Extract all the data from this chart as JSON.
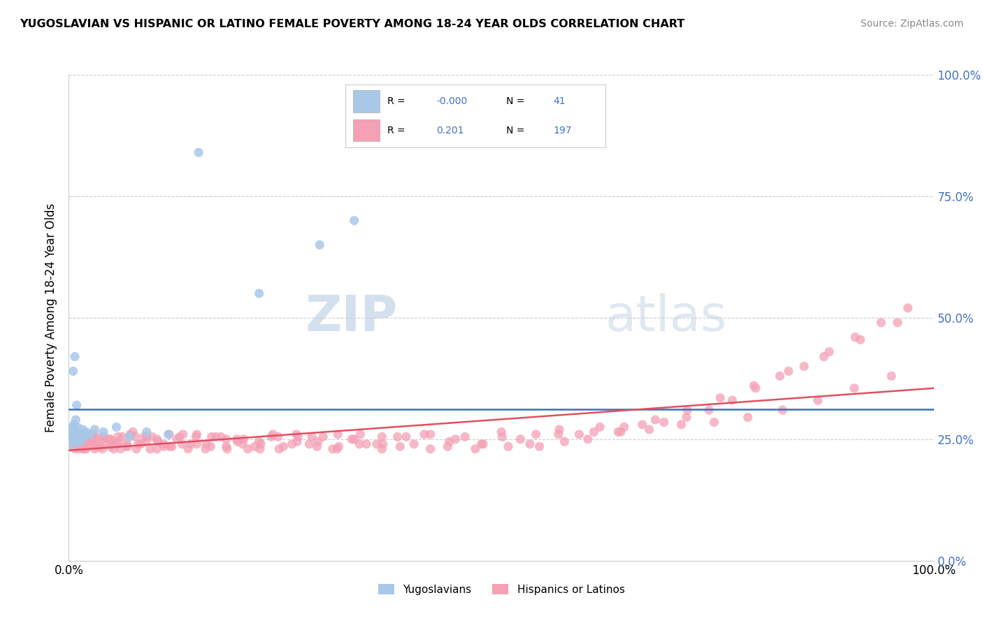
{
  "title": "YUGOSLAVIAN VS HISPANIC OR LATINO FEMALE POVERTY AMONG 18-24 YEAR OLDS CORRELATION CHART",
  "source": "Source: ZipAtlas.com",
  "ylabel": "Female Poverty Among 18-24 Year Olds",
  "color_blue": "#a8c8e8",
  "color_pink": "#f4a0b5",
  "color_blue_line": "#3a6fbc",
  "color_pink_line": "#e05060",
  "watermark_zip": "ZIP",
  "watermark_atlas": "atlas",
  "legend_label1": "Yugoslavians",
  "legend_label2": "Hispanics or Latinos",
  "blue_x": [
    0.002,
    0.003,
    0.003,
    0.004,
    0.004,
    0.005,
    0.005,
    0.005,
    0.006,
    0.006,
    0.006,
    0.007,
    0.007,
    0.008,
    0.008,
    0.009,
    0.009,
    0.01,
    0.01,
    0.011,
    0.011,
    0.012,
    0.013,
    0.014,
    0.015,
    0.016,
    0.018,
    0.02,
    0.025,
    0.03,
    0.04,
    0.055,
    0.07,
    0.09,
    0.115,
    0.15,
    0.22,
    0.29,
    0.33,
    0.005,
    0.007
  ],
  "blue_y": [
    0.255,
    0.26,
    0.27,
    0.265,
    0.275,
    0.24,
    0.25,
    0.26,
    0.255,
    0.265,
    0.28,
    0.25,
    0.27,
    0.255,
    0.29,
    0.26,
    0.32,
    0.245,
    0.275,
    0.25,
    0.265,
    0.255,
    0.245,
    0.26,
    0.25,
    0.27,
    0.255,
    0.265,
    0.26,
    0.27,
    0.265,
    0.275,
    0.255,
    0.265,
    0.26,
    0.84,
    0.55,
    0.65,
    0.7,
    0.39,
    0.42
  ],
  "pink_x": [
    0.003,
    0.004,
    0.005,
    0.005,
    0.006,
    0.006,
    0.007,
    0.007,
    0.008,
    0.008,
    0.009,
    0.01,
    0.01,
    0.011,
    0.012,
    0.013,
    0.014,
    0.015,
    0.016,
    0.017,
    0.018,
    0.019,
    0.02,
    0.022,
    0.024,
    0.026,
    0.028,
    0.03,
    0.033,
    0.036,
    0.04,
    0.044,
    0.048,
    0.052,
    0.057,
    0.062,
    0.068,
    0.074,
    0.08,
    0.087,
    0.094,
    0.102,
    0.11,
    0.119,
    0.128,
    0.138,
    0.148,
    0.159,
    0.17,
    0.182,
    0.194,
    0.207,
    0.22,
    0.234,
    0.248,
    0.263,
    0.278,
    0.294,
    0.31,
    0.327,
    0.344,
    0.362,
    0.38,
    0.399,
    0.418,
    0.438,
    0.458,
    0.479,
    0.5,
    0.522,
    0.544,
    0.567,
    0.59,
    0.614,
    0.638,
    0.663,
    0.688,
    0.714,
    0.74,
    0.767,
    0.794,
    0.822,
    0.85,
    0.879,
    0.909,
    0.939,
    0.97,
    0.005,
    0.008,
    0.012,
    0.016,
    0.021,
    0.027,
    0.034,
    0.041,
    0.05,
    0.06,
    0.071,
    0.083,
    0.096,
    0.11,
    0.125,
    0.141,
    0.158,
    0.176,
    0.195,
    0.215,
    0.236,
    0.258,
    0.281,
    0.305,
    0.33,
    0.356,
    0.383,
    0.411,
    0.44,
    0.47,
    0.501,
    0.533,
    0.566,
    0.6,
    0.635,
    0.671,
    0.708,
    0.746,
    0.785,
    0.825,
    0.866,
    0.908,
    0.951,
    0.004,
    0.007,
    0.011,
    0.015,
    0.02,
    0.026,
    0.033,
    0.04,
    0.048,
    0.057,
    0.067,
    0.078,
    0.09,
    0.103,
    0.117,
    0.132,
    0.148,
    0.165,
    0.183,
    0.202,
    0.222,
    0.243,
    0.265,
    0.288,
    0.312,
    0.337,
    0.363,
    0.39,
    0.418,
    0.447,
    0.477,
    0.508,
    0.54,
    0.573,
    0.607,
    0.642,
    0.678,
    0.715,
    0.753,
    0.792,
    0.832,
    0.873,
    0.915,
    0.958,
    0.006,
    0.01,
    0.014,
    0.019,
    0.025,
    0.032,
    0.039,
    0.047,
    0.056,
    0.066,
    0.077,
    0.089,
    0.102,
    0.116,
    0.131,
    0.147,
    0.164,
    0.182,
    0.201,
    0.221,
    0.242,
    0.264,
    0.287,
    0.311,
    0.336,
    0.362
  ],
  "pink_y": [
    0.25,
    0.245,
    0.26,
    0.235,
    0.255,
    0.24,
    0.265,
    0.23,
    0.25,
    0.235,
    0.26,
    0.24,
    0.255,
    0.23,
    0.245,
    0.255,
    0.235,
    0.26,
    0.24,
    0.25,
    0.23,
    0.255,
    0.245,
    0.235,
    0.255,
    0.24,
    0.26,
    0.23,
    0.25,
    0.235,
    0.255,
    0.24,
    0.25,
    0.23,
    0.245,
    0.255,
    0.235,
    0.265,
    0.24,
    0.255,
    0.23,
    0.25,
    0.24,
    0.235,
    0.255,
    0.23,
    0.26,
    0.24,
    0.255,
    0.235,
    0.25,
    0.23,
    0.245,
    0.255,
    0.235,
    0.26,
    0.24,
    0.255,
    0.23,
    0.25,
    0.24,
    0.23,
    0.255,
    0.24,
    0.26,
    0.235,
    0.255,
    0.24,
    0.265,
    0.25,
    0.235,
    0.27,
    0.26,
    0.275,
    0.265,
    0.28,
    0.285,
    0.295,
    0.31,
    0.33,
    0.355,
    0.38,
    0.4,
    0.43,
    0.46,
    0.49,
    0.52,
    0.245,
    0.235,
    0.255,
    0.23,
    0.25,
    0.24,
    0.235,
    0.255,
    0.245,
    0.23,
    0.26,
    0.24,
    0.255,
    0.235,
    0.25,
    0.24,
    0.23,
    0.255,
    0.245,
    0.235,
    0.26,
    0.24,
    0.255,
    0.23,
    0.25,
    0.24,
    0.235,
    0.26,
    0.245,
    0.23,
    0.255,
    0.24,
    0.26,
    0.25,
    0.265,
    0.27,
    0.28,
    0.285,
    0.295,
    0.31,
    0.33,
    0.355,
    0.38,
    0.24,
    0.25,
    0.235,
    0.255,
    0.23,
    0.26,
    0.24,
    0.25,
    0.235,
    0.255,
    0.24,
    0.23,
    0.255,
    0.245,
    0.235,
    0.26,
    0.24,
    0.255,
    0.23,
    0.25,
    0.24,
    0.23,
    0.255,
    0.245,
    0.235,
    0.26,
    0.24,
    0.255,
    0.23,
    0.25,
    0.24,
    0.235,
    0.26,
    0.245,
    0.265,
    0.275,
    0.29,
    0.31,
    0.335,
    0.36,
    0.39,
    0.42,
    0.455,
    0.49,
    0.245,
    0.255,
    0.235,
    0.26,
    0.24,
    0.255,
    0.23,
    0.25,
    0.24,
    0.235,
    0.255,
    0.245,
    0.23,
    0.26,
    0.24,
    0.255,
    0.235,
    0.25,
    0.24,
    0.23,
    0.255,
    0.245,
    0.235,
    0.26,
    0.24,
    0.255
  ]
}
